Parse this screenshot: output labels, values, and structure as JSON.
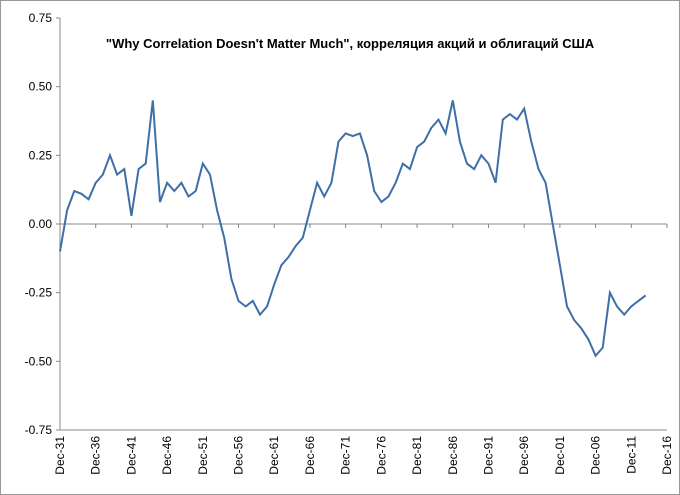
{
  "chart_data": {
    "type": "line",
    "title": "\"Why Correlation Doesn't Matter Much\", корреляция акций и облигаций США",
    "x": [
      "Dec-31",
      "Dec-32",
      "Dec-33",
      "Dec-34",
      "Dec-35",
      "Dec-36",
      "Dec-37",
      "Dec-38",
      "Dec-39",
      "Dec-40",
      "Dec-41",
      "Dec-42",
      "Dec-43",
      "Dec-44",
      "Dec-45",
      "Dec-46",
      "Dec-47",
      "Dec-48",
      "Dec-49",
      "Dec-50",
      "Dec-51",
      "Dec-52",
      "Dec-53",
      "Dec-54",
      "Dec-55",
      "Dec-56",
      "Dec-57",
      "Dec-58",
      "Dec-59",
      "Dec-60",
      "Dec-61",
      "Dec-62",
      "Dec-63",
      "Dec-64",
      "Dec-65",
      "Dec-66",
      "Dec-67",
      "Dec-68",
      "Dec-69",
      "Dec-70",
      "Dec-71",
      "Dec-72",
      "Dec-73",
      "Dec-74",
      "Dec-75",
      "Dec-76",
      "Dec-77",
      "Dec-78",
      "Dec-79",
      "Dec-80",
      "Dec-81",
      "Dec-82",
      "Dec-83",
      "Dec-84",
      "Dec-85",
      "Dec-86",
      "Dec-87",
      "Dec-88",
      "Dec-89",
      "Dec-90",
      "Dec-91",
      "Dec-92",
      "Dec-93",
      "Dec-94",
      "Dec-95",
      "Dec-96",
      "Dec-97",
      "Dec-98",
      "Dec-99",
      "Dec-00",
      "Dec-01",
      "Dec-02",
      "Dec-03",
      "Dec-04",
      "Dec-05",
      "Dec-06",
      "Dec-07",
      "Dec-08",
      "Dec-09",
      "Dec-10",
      "Dec-11",
      "Dec-12",
      "Dec-13"
    ],
    "series": [
      {
        "name": "Correlation",
        "color": "#3f6fa8",
        "values": [
          -0.1,
          0.05,
          0.12,
          0.11,
          0.09,
          0.15,
          0.18,
          0.25,
          0.18,
          0.2,
          0.03,
          0.2,
          0.22,
          0.45,
          0.08,
          0.15,
          0.12,
          0.15,
          0.1,
          0.12,
          0.22,
          0.18,
          0.05,
          -0.05,
          -0.2,
          -0.28,
          -0.3,
          -0.28,
          -0.33,
          -0.3,
          -0.22,
          -0.15,
          -0.12,
          -0.08,
          -0.05,
          0.05,
          0.15,
          0.1,
          0.15,
          0.3,
          0.33,
          0.32,
          0.33,
          0.25,
          0.12,
          0.08,
          0.1,
          0.15,
          0.22,
          0.2,
          0.28,
          0.3,
          0.35,
          0.38,
          0.33,
          0.45,
          0.3,
          0.22,
          0.2,
          0.25,
          0.22,
          0.15,
          0.38,
          0.4,
          0.38,
          0.42,
          0.3,
          0.2,
          0.15,
          0.0,
          -0.15,
          -0.3,
          -0.35,
          -0.38,
          -0.42,
          -0.48,
          -0.45,
          -0.25,
          -0.3,
          -0.33,
          -0.3,
          -0.28,
          -0.26
        ]
      }
    ],
    "xlim": [
      "Dec-31",
      "Dec-16"
    ],
    "xticks": [
      "Dec-31",
      "Dec-36",
      "Dec-41",
      "Dec-46",
      "Dec-51",
      "Dec-56",
      "Dec-61",
      "Dec-66",
      "Dec-71",
      "Dec-76",
      "Dec-81",
      "Dec-86",
      "Dec-91",
      "Dec-96",
      "Dec-01",
      "Dec-06",
      "Dec-11",
      "Dec-16"
    ],
    "ylim": [
      -0.75,
      0.75
    ],
    "yticks": [
      0.75,
      {
        "value": 0.5,
        "label": "0.50"
      },
      0.25,
      {
        "value": 0,
        "label": "0.00"
      },
      -0.25,
      {
        "value": -0.5,
        "label": "-0.50"
      },
      -0.75
    ],
    "grid": false
  }
}
